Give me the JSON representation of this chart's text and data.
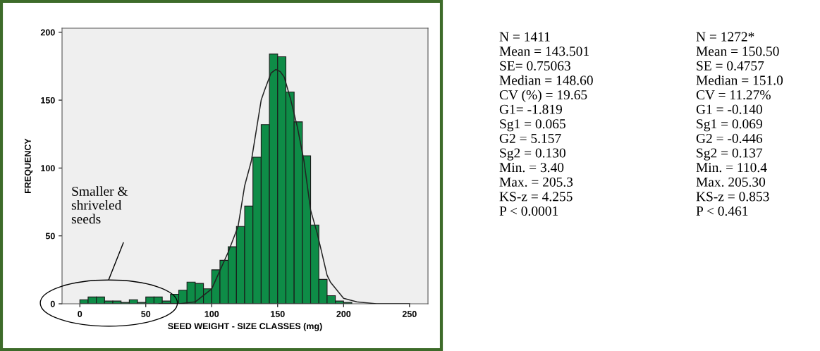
{
  "chart_data": {
    "type": "histogram",
    "xlabel": "SEED WEIGHT - SIZE CLASSES (mg)",
    "ylabel": "FREQUENCY",
    "bins": [
      0,
      6.25,
      12.5,
      18.75,
      25,
      31.25,
      37.5,
      43.75,
      50,
      56.25,
      62.5,
      68.75,
      75,
      81.25,
      87.5,
      93.75,
      100,
      106.25,
      112.5,
      118.75,
      125,
      131.25,
      137.5,
      143.75,
      150,
      156.25,
      162.5,
      168.75,
      175,
      181.25,
      187.5,
      193.75,
      200,
      206.25
    ],
    "values": [
      3,
      5,
      5,
      2,
      2,
      1,
      3,
      1,
      5,
      5,
      2,
      7,
      10,
      16,
      15,
      11,
      25,
      32,
      42,
      57,
      72,
      108,
      132,
      184,
      182,
      156,
      134,
      109,
      58,
      18,
      6,
      2,
      1
    ],
    "color": "#0e8c47",
    "series": [
      {
        "type": "line",
        "color": "#222222",
        "x": [
          60,
          75,
          87.5,
          100,
          112.5,
          120,
          125,
          130,
          137.5,
          140,
          145,
          148.6,
          152,
          155,
          160,
          165,
          170,
          175,
          180,
          187.5,
          190,
          200,
          210,
          225,
          250
        ],
        "values": [
          0,
          0,
          1.4,
          11,
          38,
          57,
          87,
          105,
          150,
          157,
          170,
          172.6,
          171,
          167,
          150,
          130,
          105,
          69,
          52,
          21,
          16,
          4,
          1.4,
          0,
          0
        ]
      }
    ],
    "xlim": [
      -13.5,
      264
    ],
    "ylim": [
      0,
      203
    ],
    "xticks": [
      0,
      50,
      100,
      150,
      200,
      250
    ],
    "yticks": [
      0,
      50,
      100,
      150,
      200
    ],
    "grid": false,
    "legend": false,
    "annotations": [
      "Smaller &\nshriveled\nseeds",
      "N = 1411\nMean = 143.501\nSE= 0.75063\nMedian = 148.60\nCV (%) = 19.65\nG1= -1.819\nSg1 = 0.065\nG2 = 5.157\nSg2 = 0.130\nMin. = 3.40\nMax. = 205.3\nKS-z = 4.255\nP < 0.0001",
      "N = 1272*\nMean = 150.50\nSE = 0.4757\nMedian = 151.0\nCV = 11.27%\nG1 = -0.140\nSg1 = 0.069\nG2 = -0.446\nSg2 = 0.137\nMin. = 110.4\nMax. 205.30\nKS-z = 0.853\nP < 0.461"
    ]
  }
}
